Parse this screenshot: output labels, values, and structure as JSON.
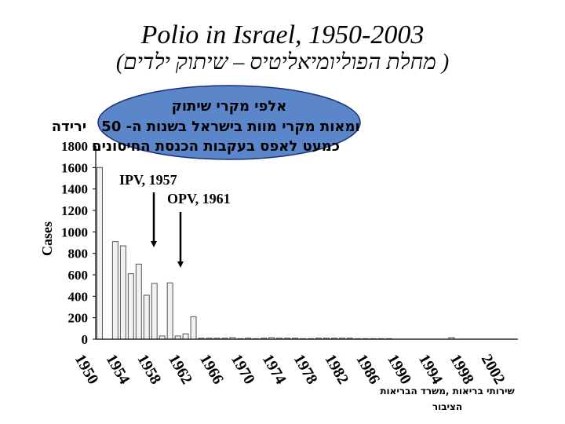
{
  "title": "Polio in Israel, 1950-2003",
  "subtitle": "(מחלת הפוליומיאליטיס – שיתוק ילדים )",
  "colors": {
    "bar_fill": "#f2f2f2",
    "bar_stroke": "#555555",
    "bubble_fill": "#5b86c9",
    "bubble_stroke": "#1c2f78",
    "arrow": "#000000"
  },
  "callout": {
    "line1": "אלפי מקרי שיתוק",
    "line2": "ומאות מקרי מוות בישראל בשנות ה- 50",
    "line2_tail": "ירידה",
    "line3": "כמעט לאפס בעקבות הכנסת החיסונים"
  },
  "annotations": {
    "ipv": "IPV, 1957",
    "opv": "OPV, 1961"
  },
  "source": {
    "line1": "שירותי בריאות ,משרד הבריאות",
    "line2": "הציבור"
  },
  "chart_data": {
    "type": "bar",
    "ylabel": "Cases",
    "xlabel": "",
    "ylim": [
      0,
      1800
    ],
    "yticks": [
      0,
      200,
      400,
      600,
      800,
      1000,
      1200,
      1400,
      1600,
      1800
    ],
    "xtick_labels": [
      "1950",
      "1954",
      "1958",
      "1962",
      "1966",
      "1970",
      "1974",
      "1978",
      "1982",
      "1986",
      "1990",
      "1994",
      "1998",
      "2002"
    ],
    "x": [
      1950,
      1951,
      1952,
      1953,
      1954,
      1955,
      1956,
      1957,
      1958,
      1959,
      1960,
      1961,
      1962,
      1963,
      1964,
      1965,
      1966,
      1967,
      1968,
      1969,
      1970,
      1971,
      1972,
      1973,
      1974,
      1975,
      1976,
      1977,
      1978,
      1979,
      1980,
      1981,
      1982,
      1983,
      1984,
      1985,
      1986,
      1987,
      1988,
      1989,
      1990,
      1991,
      1992,
      1993,
      1994,
      1995,
      1996,
      1997,
      1998,
      1999,
      2000,
      2001,
      2002,
      2003
    ],
    "values": [
      1600,
      0,
      910,
      870,
      610,
      700,
      410,
      520,
      30,
      525,
      30,
      50,
      210,
      10,
      10,
      10,
      10,
      15,
      5,
      10,
      5,
      10,
      15,
      10,
      10,
      10,
      5,
      5,
      10,
      10,
      10,
      10,
      10,
      5,
      5,
      5,
      5,
      5,
      0,
      0,
      0,
      0,
      0,
      0,
      0,
      15,
      0,
      0,
      0,
      0,
      0,
      0,
      0,
      0
    ],
    "grid": false
  }
}
